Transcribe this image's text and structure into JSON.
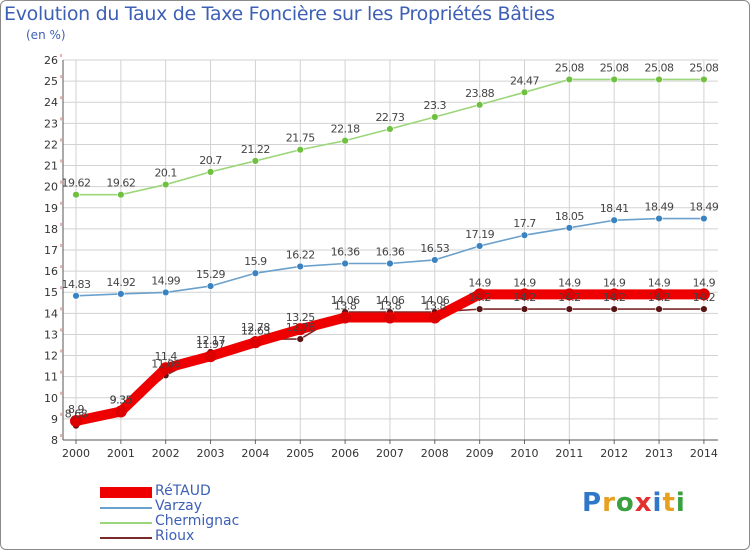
{
  "header": {
    "title": "Evolution du Taux de Taxe Foncière sur les Propriétés Bâties",
    "unit": "(en %)"
  },
  "logo": {
    "text": "Proxiti",
    "colors": [
      "#2f78c8",
      "#e8a020",
      "#3aa040",
      "#e03030",
      "#2f78c8",
      "#e8a020",
      "#3aa040"
    ]
  },
  "chart_data": {
    "type": "line",
    "title": "Evolution du Taux de Taxe Foncière sur les Propriétés Bâties",
    "ylabel": "(en %)",
    "x": [
      2000,
      2001,
      2002,
      2003,
      2004,
      2005,
      2006,
      2007,
      2008,
      2009,
      2010,
      2011,
      2012,
      2013,
      2014
    ],
    "ylim": [
      8,
      26
    ],
    "yticks": [
      8,
      9,
      10,
      11,
      12,
      13,
      14,
      15,
      16,
      17,
      18,
      19,
      20,
      21,
      22,
      23,
      24,
      25,
      26
    ],
    "grid": true,
    "legend_position": "bottom-left",
    "series": [
      {
        "name": "Chermignac",
        "color": "#9bd67a",
        "marker": "#6fc040",
        "values": [
          19.62,
          19.62,
          20.1,
          20.7,
          21.22,
          21.75,
          22.18,
          22.73,
          23.3,
          23.88,
          24.47,
          25.08,
          25.08,
          25.08,
          25.08
        ],
        "labels": [
          "19.62",
          "19.62",
          "20.1",
          "20.7",
          "21.22",
          "21.75",
          "22.18",
          "22.73",
          "23.3",
          "23.88",
          "24.47",
          "25.08",
          "25.08",
          "25.08",
          "25.08"
        ]
      },
      {
        "name": "Varzay",
        "color": "#6aa0cc",
        "marker": "#3a82c0",
        "values": [
          14.83,
          14.92,
          14.99,
          15.29,
          15.9,
          16.22,
          16.36,
          16.36,
          16.53,
          17.19,
          17.7,
          18.05,
          18.41,
          18.49,
          18.49
        ],
        "labels": [
          "14.83",
          "14.92",
          "14.99",
          "15.29",
          "15.9",
          "16.22",
          "16.36",
          "16.36",
          "16.53",
          "17.19",
          "17.7",
          "18.05",
          "18.41",
          "18.49",
          "18.49"
        ]
      },
      {
        "name": "Rioux",
        "color": "#7a2a2a",
        "marker": "#5a1414",
        "values": [
          8.68,
          9.35,
          11.06,
          12.17,
          12.78,
          12.78,
          14.06,
          14.06,
          14.06,
          14.2,
          14.2,
          14.2,
          14.2,
          14.2,
          14.2
        ],
        "labels": [
          "8.68",
          "9.35",
          "11.06",
          "12.17",
          "12.78",
          "12.78",
          "14.06",
          "14.06",
          "14.06",
          "14.2",
          "14.2",
          "14.2",
          "14.2",
          "14.2",
          "14.2"
        ]
      },
      {
        "name": "RéTAUD",
        "color": "#ee0000",
        "marker": "#dd0000",
        "values": [
          8.9,
          9.35,
          11.4,
          11.97,
          12.63,
          13.25,
          13.8,
          13.8,
          13.8,
          14.9,
          14.9,
          14.9,
          14.9,
          14.9,
          14.9
        ],
        "labels": [
          "8.9",
          "9.35",
          "11.4",
          "11.97",
          "12.63",
          "13.25",
          "13.8",
          "13.8",
          "13.8",
          "14.9",
          "14.9",
          "14.9",
          "14.9",
          "14.9",
          "14.9"
        ]
      }
    ]
  },
  "legend": [
    {
      "label": "RéTAUD",
      "color": "#ee0000"
    },
    {
      "label": "Varzay",
      "color": "#6aa0cc"
    },
    {
      "label": "Chermignac",
      "color": "#9bd67a"
    },
    {
      "label": "Rioux",
      "color": "#7a2a2a"
    }
  ]
}
